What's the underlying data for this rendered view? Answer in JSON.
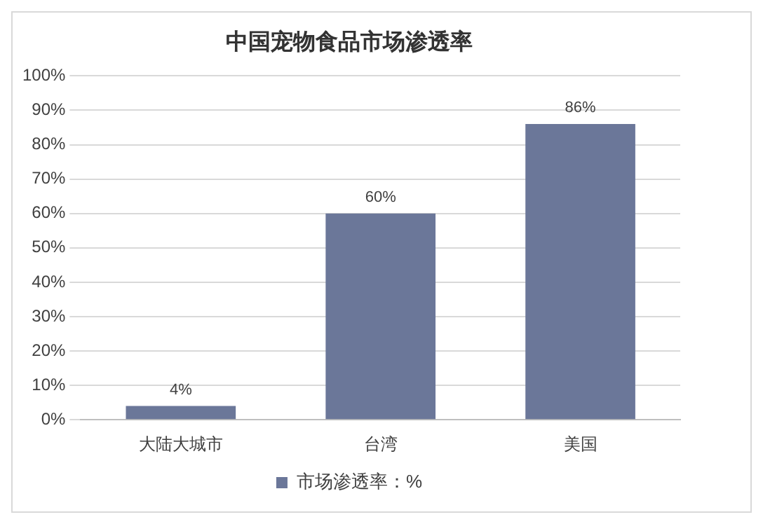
{
  "chart_data": {
    "type": "bar",
    "title": "中国宠物食品市场渗透率",
    "categories": [
      "大陆大城市",
      "台湾",
      "美国"
    ],
    "series": [
      {
        "name": "市场渗透率：%",
        "color": "#6b7799",
        "values": [
          4,
          60,
          86
        ],
        "value_labels": [
          "4%",
          "60%",
          "86%"
        ]
      }
    ],
    "ylim": [
      0,
      100
    ],
    "yticks": [
      {
        "value": 0,
        "label": "0%"
      },
      {
        "value": 10,
        "label": "10%"
      },
      {
        "value": 20,
        "label": "20%"
      },
      {
        "value": 30,
        "label": "30%"
      },
      {
        "value": 40,
        "label": "40%"
      },
      {
        "value": 50,
        "label": "50%"
      },
      {
        "value": 60,
        "label": "60%"
      },
      {
        "value": 70,
        "label": "70%"
      },
      {
        "value": 80,
        "label": "80%"
      },
      {
        "value": 90,
        "label": "90%"
      },
      {
        "value": 100,
        "label": "100%"
      }
    ],
    "grid": "y",
    "legend": "bottom"
  }
}
